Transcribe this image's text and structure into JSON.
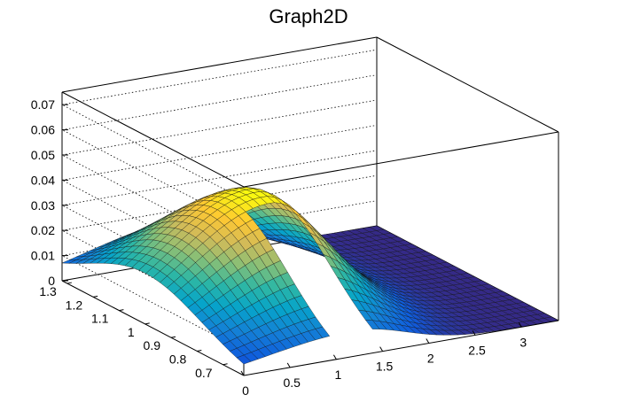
{
  "chart_data": {
    "type": "surface",
    "title": "Graph2D",
    "x_axis": {
      "ticks": [
        "0",
        "0.5",
        "1",
        "1.5",
        "2",
        "2.5",
        "3"
      ],
      "range": [
        0,
        3.4
      ]
    },
    "y_axis": {
      "ticks": [
        "0.7",
        "0.8",
        "0.9",
        "1",
        "1.1",
        "1.2",
        "1.3"
      ],
      "range": [
        0.62,
        1.32
      ]
    },
    "z_axis": {
      "ticks": [
        "0",
        "0.01",
        "0.02",
        "0.03",
        "0.04",
        "0.05",
        "0.06",
        "0.07"
      ],
      "range": [
        0,
        0.075
      ]
    },
    "grid": true,
    "palette": [
      "#352a87",
      "#0f5cdd",
      "#1481d6",
      "#06a4ca",
      "#2eb7a4",
      "#87bf77",
      "#d1bb59",
      "#fec832",
      "#f9fb0e"
    ],
    "peak": {
      "x": 1.2,
      "y": 1.0,
      "z": 0.045
    }
  }
}
